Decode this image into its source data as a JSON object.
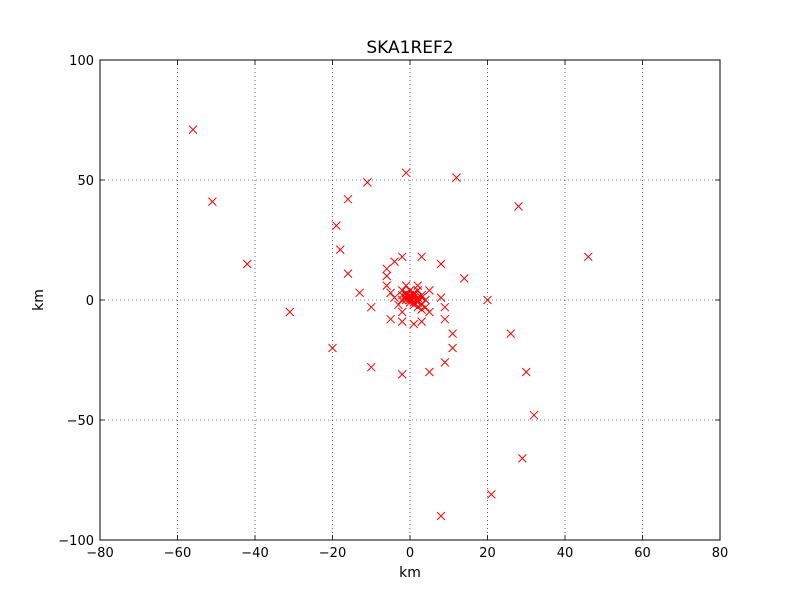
{
  "chart_data": {
    "type": "scatter",
    "title": "SKA1REF2",
    "xlabel": "km",
    "ylabel": "km",
    "xlim": [
      -80,
      80
    ],
    "ylim": [
      -100,
      100
    ],
    "xticks": [
      -80,
      -60,
      -40,
      -20,
      0,
      20,
      40,
      60,
      80
    ],
    "yticks": [
      -100,
      -50,
      0,
      50,
      100
    ],
    "grid": true,
    "marker": "x",
    "marker_color": "#ff0000",
    "series": [
      {
        "points": [
          [
            -56,
            71
          ],
          [
            -51,
            41
          ],
          [
            -42,
            15
          ],
          [
            -31,
            -5
          ],
          [
            -20,
            -20
          ],
          [
            -10,
            -28
          ],
          [
            -2,
            -31
          ],
          [
            8,
            -90
          ],
          [
            21,
            -81
          ],
          [
            29,
            -66
          ],
          [
            32,
            -48
          ],
          [
            30,
            -30
          ],
          [
            26,
            -14
          ],
          [
            20,
            0
          ],
          [
            46,
            18
          ],
          [
            28,
            39
          ],
          [
            12,
            51
          ],
          [
            -1,
            53
          ],
          [
            -11,
            49
          ],
          [
            -16,
            42
          ],
          [
            -19,
            31
          ],
          [
            -18,
            21
          ],
          [
            -16,
            11
          ],
          [
            -13,
            3
          ],
          [
            -10,
            -3
          ],
          [
            -5,
            -8
          ],
          [
            -2,
            -9
          ],
          [
            1,
            -10
          ],
          [
            3,
            -9
          ],
          [
            5,
            -5
          ],
          [
            9,
            -8
          ],
          [
            11,
            -14
          ],
          [
            11,
            -20
          ],
          [
            9,
            -26
          ],
          [
            5,
            -30
          ],
          [
            14,
            9
          ],
          [
            8,
            15
          ],
          [
            3,
            18
          ],
          [
            -2,
            18
          ],
          [
            -4,
            16
          ],
          [
            -6,
            13
          ],
          [
            -6,
            10
          ],
          [
            -6,
            6
          ],
          [
            -5,
            3
          ],
          [
            -4,
            1
          ],
          [
            -3,
            -2
          ],
          [
            -2,
            -5
          ],
          [
            8,
            1
          ],
          [
            9,
            -3
          ],
          [
            5,
            4
          ],
          [
            2,
            6
          ],
          [
            -1,
            6
          ],
          [
            -2,
            4
          ],
          [
            -2,
            2
          ],
          [
            -1,
            0
          ],
          [
            0,
            -1
          ],
          [
            1,
            -2
          ],
          [
            2,
            -3
          ],
          [
            3,
            -2
          ],
          [
            4,
            0
          ],
          [
            3,
            2
          ],
          [
            2,
            4
          ],
          [
            0,
            4
          ],
          [
            -1,
            3
          ],
          [
            -1,
            1
          ],
          [
            0,
            0
          ],
          [
            1,
            -1
          ],
          [
            2,
            -1
          ],
          [
            2,
            1
          ],
          [
            1,
            2
          ],
          [
            0,
            2
          ],
          [
            -2,
            0
          ],
          [
            3,
            -4
          ],
          [
            4,
            -3
          ],
          [
            1,
            1
          ],
          [
            0,
            1
          ],
          [
            -1,
            2
          ],
          [
            2,
            0
          ],
          [
            1,
            3
          ],
          [
            3,
            1
          ]
        ]
      }
    ]
  }
}
